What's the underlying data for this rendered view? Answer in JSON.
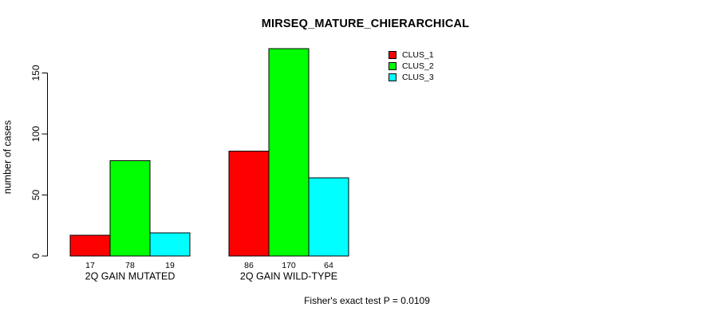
{
  "title": "MIRSEQ_MATURE_CHIERARCHICAL",
  "y_axis_label": "number of cases",
  "footer_note": "Fisher's exact test P = 0.0109",
  "colors": {
    "clus_1": "#ff0000",
    "clus_2": "#00ff00",
    "clus_3": "#00ffff",
    "axis": "#000000",
    "background": "#ffffff"
  },
  "legend": {
    "position": "top-right",
    "items": [
      {
        "label": "CLUS_1",
        "color": "#ff0000"
      },
      {
        "label": "CLUS_2",
        "color": "#00ff00"
      },
      {
        "label": "CLUS_3",
        "color": "#00ffff"
      }
    ]
  },
  "chart_data": {
    "type": "bar",
    "title": "MIRSEQ_MATURE_CHIERARCHICAL",
    "xlabel": "",
    "ylabel": "number of cases",
    "categories": [
      "2Q GAIN MUTATED",
      "2Q GAIN WILD-TYPE"
    ],
    "series": [
      {
        "name": "CLUS_1",
        "color": "#ff0000",
        "values": [
          17,
          86
        ]
      },
      {
        "name": "CLUS_2",
        "color": "#00ff00",
        "values": [
          78,
          170
        ]
      },
      {
        "name": "CLUS_3",
        "color": "#00ffff",
        "values": [
          19,
          64
        ]
      }
    ],
    "value_labels_shown": true,
    "yticks": [
      0,
      50,
      100,
      150
    ],
    "ylim": [
      0,
      172
    ],
    "grid": false,
    "legend_position": "top-right",
    "annotation": "Fisher's exact test P = 0.0109"
  }
}
